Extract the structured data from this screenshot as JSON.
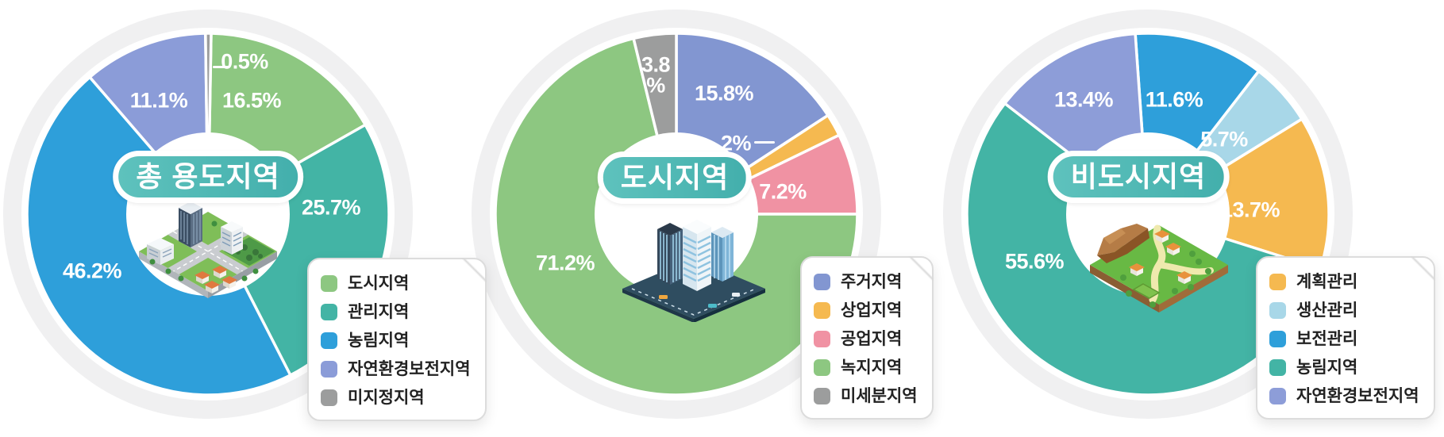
{
  "page": {
    "background": "#ffffff",
    "ring_background": "#f0f0f1",
    "slice_label_color": "#ffffff",
    "legend_text_color": "#222222",
    "unit": "%"
  },
  "chart_data": [
    {
      "type": "pie",
      "donut": true,
      "title": "총 용도지역",
      "title_pill_gradient": [
        "#5ec2bd",
        "#43afac"
      ],
      "center_illustration": "city-district-isometric",
      "start_angle_deg": -89,
      "direction": "clockwise",
      "slices": [
        {
          "name": "도시지역",
          "value": 16.5,
          "label": "16.5%",
          "color": "#8dc781"
        },
        {
          "name": "관리지역",
          "value": 25.7,
          "label": "25.7%",
          "color": "#43b4a5"
        },
        {
          "name": "농림지역",
          "value": 46.2,
          "label": "46.2%",
          "color": "#2e9fda"
        },
        {
          "name": "자연환경보전지역",
          "value": 11.1,
          "label": "11.1%",
          "color": "#8b9cd8"
        },
        {
          "name": "미지정지역",
          "value": 0.5,
          "label": "0.5%",
          "color": "#9c9d9d"
        }
      ],
      "legend": {
        "position": "bottom-right",
        "items": [
          "도시지역",
          "관리지역",
          "농림지역",
          "자연환경보전지역",
          "미지정지역"
        ]
      }
    },
    {
      "type": "pie",
      "donut": true,
      "title": "도시지역",
      "title_pill_gradient": [
        "#5ec2bd",
        "#43afac"
      ],
      "center_illustration": "skyscraper-block-isometric",
      "start_angle_deg": -90,
      "direction": "clockwise",
      "slices": [
        {
          "name": "주거지역",
          "value": 15.8,
          "label": "15.8%",
          "color": "#8296d1"
        },
        {
          "name": "상업지역",
          "value": 2,
          "label": "2%",
          "color": "#f5b950"
        },
        {
          "name": "공업지역",
          "value": 7.2,
          "label": "7.2%",
          "color": "#f092a3"
        },
        {
          "name": "녹지지역",
          "value": 71.2,
          "label": "71.2%",
          "color": "#8dc781"
        },
        {
          "name": "미세분지역",
          "value": 3.8,
          "label": "3.8 %",
          "color": "#9c9d9d"
        }
      ],
      "legend": {
        "position": "bottom-right",
        "items": [
          "주거지역",
          "상업지역",
          "공업지역",
          "녹지지역",
          "미세분지역"
        ]
      }
    },
    {
      "type": "pie",
      "donut": true,
      "title": "비도시지역",
      "title_pill_gradient": [
        "#5ec2bd",
        "#43afac"
      ],
      "center_illustration": "rural-village-isometric",
      "start_angle_deg": -94,
      "direction": "clockwise",
      "slices": [
        {
          "name": "보전관리",
          "value": 11.6,
          "label": "11.6%",
          "color": "#2e9fda"
        },
        {
          "name": "생산관리",
          "value": 5.7,
          "label": "5.7%",
          "color": "#a8d7e8"
        },
        {
          "name": "계획관리",
          "value": 13.7,
          "label": "13.7%",
          "color": "#f5b950"
        },
        {
          "name": "농림지역",
          "value": 55.6,
          "label": "55.6%",
          "color": "#43b4a5"
        },
        {
          "name": "자연환경보전지역",
          "value": 13.4,
          "label": "13.4%",
          "color": "#8d9dd8"
        }
      ],
      "legend": {
        "position": "bottom-right",
        "items": [
          "계획관리",
          "생산관리",
          "보전관리",
          "농림지역",
          "자연환경보전지역"
        ]
      }
    }
  ]
}
